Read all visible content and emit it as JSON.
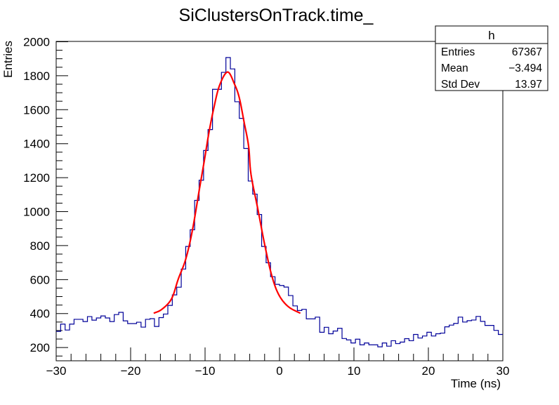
{
  "chart_data": {
    "type": "bar",
    "style": "step-histogram",
    "title": "SiClustersOnTrack.time_",
    "xlabel": "Time (ns)",
    "ylabel": "Entries",
    "xlim": [
      -30,
      30
    ],
    "ylim": [
      122,
      2002
    ],
    "grid": false,
    "x_ticks": [
      "-30",
      "-20",
      "-10",
      "0",
      "10",
      "20",
      "30"
    ],
    "y_ticks": [
      "200",
      "400",
      "600",
      "800",
      "1000",
      "1200",
      "1400",
      "1600",
      "1800",
      "2000"
    ],
    "bin_width": 0.6,
    "histogram_color": "#000099",
    "values": [
      295,
      338,
      303,
      338,
      366,
      366,
      353,
      382,
      361,
      374,
      386,
      374,
      353,
      394,
      407,
      357,
      341,
      341,
      349,
      320,
      366,
      370,
      324,
      376,
      397,
      448,
      510,
      555,
      662,
      795,
      893,
      1066,
      1185,
      1360,
      1483,
      1720,
      1720,
      1820,
      1907,
      1840,
      1647,
      1549,
      1372,
      1180,
      1103,
      983,
      795,
      699,
      617,
      572,
      565,
      556,
      506,
      445,
      418,
      425,
      369,
      369,
      379,
      290,
      319,
      281,
      297,
      313,
      253,
      245,
      227,
      249,
      216,
      227,
      216,
      216,
      204,
      227,
      208,
      240,
      223,
      232,
      252,
      240,
      277,
      256,
      268,
      290,
      268,
      281,
      285,
      322,
      332,
      342,
      379,
      350,
      358,
      362,
      383,
      354,
      330,
      330,
      301,
      277
    ],
    "fit": {
      "color": "#ff0000",
      "points": [
        [
          -16.9,
          402
        ],
        [
          -15.8,
          425
        ],
        [
          -14.5,
          487
        ],
        [
          -13.6,
          603
        ],
        [
          -12.6,
          720
        ],
        [
          -11.7,
          890
        ],
        [
          -10.75,
          1135
        ],
        [
          -10.1,
          1300
        ],
        [
          -9.5,
          1460
        ],
        [
          -8.87,
          1600
        ],
        [
          -8.08,
          1740
        ],
        [
          -6.98,
          1822
        ],
        [
          -6.04,
          1750
        ],
        [
          -5.4,
          1670
        ],
        [
          -4.77,
          1530
        ],
        [
          -4.15,
          1385
        ],
        [
          -3.83,
          1220
        ],
        [
          -2.9,
          1013
        ],
        [
          -1.94,
          795
        ],
        [
          -1.0,
          617
        ],
        [
          -0.06,
          508
        ],
        [
          1.2,
          440
        ],
        [
          2.8,
          402
        ]
      ]
    },
    "stats_box": {
      "name": "h",
      "rows": [
        {
          "label": "Entries",
          "value": "67367"
        },
        {
          "label": "Mean",
          "value": "−3.494"
        },
        {
          "label": "Std Dev",
          "value": "13.97"
        }
      ]
    }
  }
}
